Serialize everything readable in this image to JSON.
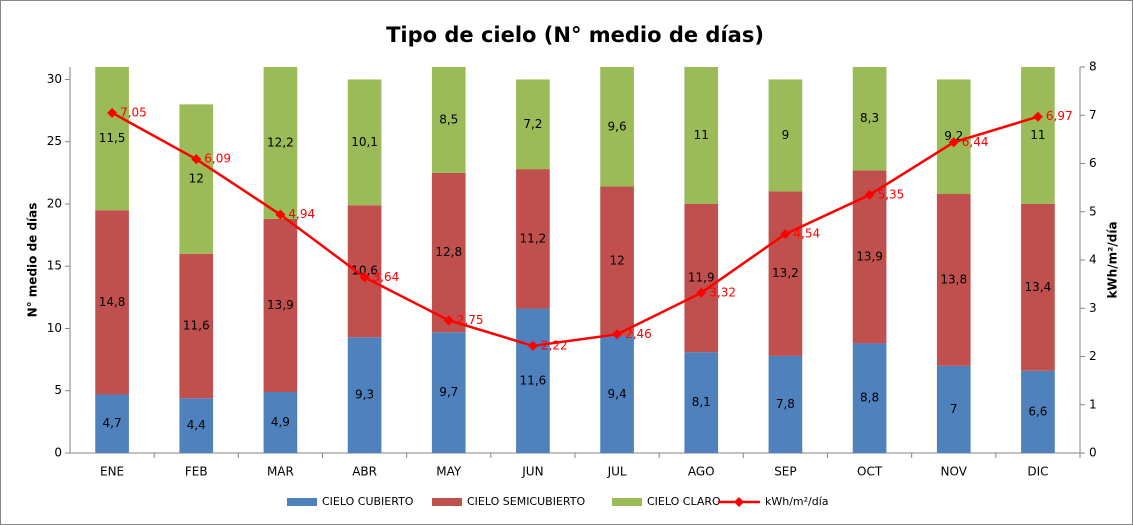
{
  "chart_data": {
    "type": "bar",
    "stacked": true,
    "title": "Tipo de cielo (N° medio de días)",
    "ylabel": "N° medio de días",
    "y2label": "kWh/m²/día",
    "categories": [
      "ENE",
      "FEB",
      "MAR",
      "ABR",
      "MAY",
      "JUN",
      "JUL",
      "AGO",
      "SEP",
      "OCT",
      "NOV",
      "DIC"
    ],
    "series": [
      {
        "name": "CIELO CUBIERTO",
        "type": "bar",
        "color": "#4f81bd",
        "values": [
          4.7,
          4.4,
          4.9,
          9.3,
          9.7,
          11.6,
          9.4,
          8.1,
          7.8,
          8.8,
          7,
          6.6
        ],
        "value_labels": [
          "4,7",
          "4,4",
          "4,9",
          "9,3",
          "9,7",
          "11,6",
          "9,4",
          "8,1",
          "7,8",
          "8,8",
          "7",
          "6,6"
        ]
      },
      {
        "name": "CIELO SEMICUBIERTO",
        "type": "bar",
        "color": "#c0504d",
        "values": [
          14.8,
          11.6,
          13.9,
          10.6,
          12.8,
          11.2,
          12,
          11.9,
          13.2,
          13.9,
          13.8,
          13.4
        ],
        "value_labels": [
          "14,8",
          "11,6",
          "13,9",
          "10,6",
          "12,8",
          "11,2",
          "12",
          "11,9",
          "13,2",
          "13,9",
          "13,8",
          "13,4"
        ]
      },
      {
        "name": "CIELO CLARO",
        "type": "bar",
        "color": "#9bbb59",
        "values": [
          11.5,
          12,
          12.2,
          10.1,
          8.5,
          7.2,
          9.6,
          11,
          9,
          8.3,
          9.2,
          11
        ],
        "value_labels": [
          "11,5",
          "12",
          "12,2",
          "10,1",
          "8,5",
          "7,2",
          "9,6",
          "11",
          "9",
          "8,3",
          "9,2",
          "11"
        ]
      },
      {
        "name": "kWh/m²/día",
        "type": "line",
        "axis": "y2",
        "color": "#ff0000",
        "values": [
          7.05,
          6.09,
          4.94,
          3.64,
          2.75,
          2.22,
          2.46,
          3.32,
          4.54,
          5.35,
          6.44,
          6.97
        ],
        "value_labels": [
          "7,05",
          "6,09",
          "4,94",
          "3,64",
          "2,75",
          "2,22",
          "2,46",
          "3,32",
          "4,54",
          "5,35",
          "6,44",
          "6,97"
        ]
      }
    ],
    "ylim": [
      0,
      31
    ],
    "yticks": [
      0,
      5,
      10,
      15,
      20,
      25,
      30
    ],
    "y2lim": [
      0,
      8
    ],
    "y2ticks": [
      0,
      1,
      2,
      3,
      4,
      5,
      6,
      7,
      8
    ],
    "grid": false,
    "legend": "bottom"
  }
}
